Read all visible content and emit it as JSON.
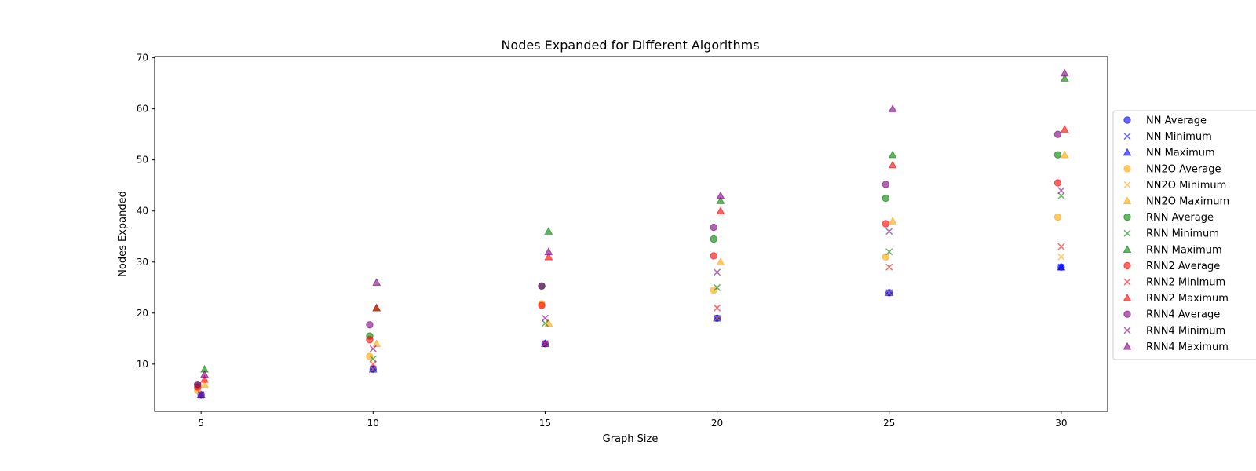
{
  "chart_data": {
    "type": "scatter",
    "title": "Nodes Expanded for Different Algorithms",
    "xlabel": "Graph Size",
    "ylabel": "Nodes Expanded",
    "xlim": [
      3.65,
      31.35
    ],
    "ylim": [
      0.75,
      70.25
    ],
    "xticks": [
      5,
      10,
      15,
      20,
      25,
      30
    ],
    "yticks": [
      10,
      20,
      30,
      40,
      50,
      60,
      70
    ],
    "legend_position": "right",
    "series": [
      {
        "name": "NN Average",
        "marker": "circle",
        "color": "#0000ff",
        "x": [
          5,
          10,
          15,
          20,
          25,
          30
        ],
        "y": [
          4,
          9,
          14,
          19,
          24,
          29
        ]
      },
      {
        "name": "NN Minimum",
        "marker": "x",
        "color": "#0000ff",
        "x": [
          5,
          10,
          15,
          20,
          25,
          30
        ],
        "y": [
          4,
          9,
          14,
          19,
          24,
          29
        ]
      },
      {
        "name": "NN Maximum",
        "marker": "triangle",
        "color": "#0000ff",
        "x": [
          5,
          10,
          15,
          20,
          25,
          30
        ],
        "y": [
          4,
          9,
          14,
          19,
          24,
          29
        ]
      },
      {
        "name": "NN2O Average",
        "marker": "circle",
        "color": "#ffa500",
        "x": [
          5,
          10,
          15,
          20,
          25,
          30
        ],
        "y": [
          4.8,
          11.5,
          21.8,
          24.5,
          31,
          38.8
        ]
      },
      {
        "name": "NN2O Minimum",
        "marker": "x",
        "color": "#ffa500",
        "x": [
          5,
          10,
          15,
          20,
          25,
          30
        ],
        "y": [
          4,
          9,
          14,
          19,
          24,
          31
        ]
      },
      {
        "name": "NN2O Maximum",
        "marker": "triangle",
        "color": "#ffa500",
        "x": [
          5,
          10,
          15,
          20,
          25,
          30
        ],
        "y": [
          6,
          14,
          18,
          30,
          38,
          51
        ]
      },
      {
        "name": "RNN Average",
        "marker": "circle",
        "color": "#008000",
        "x": [
          5,
          10,
          15,
          20,
          25,
          30
        ],
        "y": [
          6,
          15.5,
          25.3,
          34.5,
          42.5,
          51
        ]
      },
      {
        "name": "RNN Minimum",
        "marker": "x",
        "color": "#008000",
        "x": [
          5,
          10,
          15,
          20,
          25,
          30
        ],
        "y": [
          4,
          11,
          18,
          25,
          32,
          43
        ]
      },
      {
        "name": "RNN Maximum",
        "marker": "triangle",
        "color": "#008000",
        "x": [
          5,
          10,
          15,
          20,
          25,
          30
        ],
        "y": [
          9,
          21,
          36,
          42,
          51,
          66
        ]
      },
      {
        "name": "RNN2 Average",
        "marker": "circle",
        "color": "#ff0000",
        "x": [
          5,
          10,
          15,
          20,
          25,
          30
        ],
        "y": [
          5.5,
          14.8,
          21.5,
          31.2,
          37.5,
          45.5
        ]
      },
      {
        "name": "RNN2 Minimum",
        "marker": "x",
        "color": "#ff0000",
        "x": [
          5,
          10,
          15,
          20,
          25,
          30
        ],
        "y": [
          4,
          10,
          14,
          21,
          29,
          33
        ]
      },
      {
        "name": "RNN2 Maximum",
        "marker": "triangle",
        "color": "#ff0000",
        "x": [
          5,
          10,
          15,
          20,
          25,
          30
        ],
        "y": [
          7,
          21,
          31,
          40,
          49,
          56
        ]
      },
      {
        "name": "RNN4 Average",
        "marker": "circle",
        "color": "#800080",
        "x": [
          5,
          10,
          15,
          20,
          25,
          30
        ],
        "y": [
          6,
          17.7,
          25.3,
          36.8,
          45.2,
          55
        ]
      },
      {
        "name": "RNN4 Minimum",
        "marker": "x",
        "color": "#800080",
        "x": [
          5,
          10,
          15,
          20,
          25,
          30
        ],
        "y": [
          4,
          13,
          19,
          28,
          36,
          44
        ]
      },
      {
        "name": "RNN4 Maximum",
        "marker": "triangle",
        "color": "#800080",
        "x": [
          5,
          10,
          15,
          20,
          25,
          30
        ],
        "y": [
          8,
          26,
          32,
          43,
          60,
          67
        ]
      }
    ]
  }
}
